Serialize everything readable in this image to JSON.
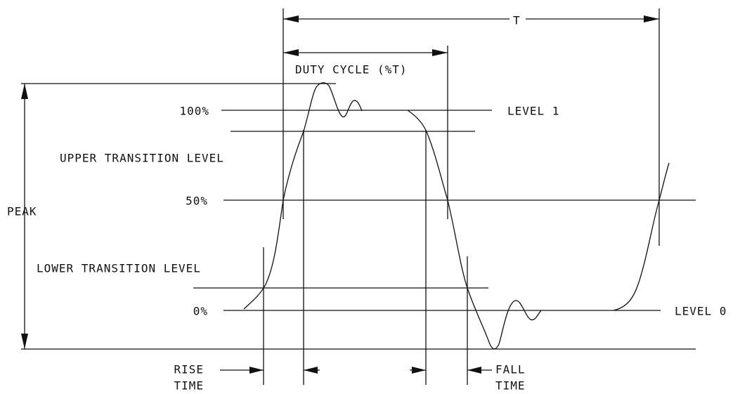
{
  "labels": {
    "period": "T",
    "duty_cycle": "DUTY CYCLE (%T)",
    "level_100": "100%",
    "level_1": "LEVEL 1",
    "upper_transition": "UPPER TRANSITION LEVEL",
    "level_50": "50%",
    "peak": "PEAK",
    "lower_transition": "LOWER TRANSITION LEVEL",
    "level_0_pct": "0%",
    "level_0": "LEVEL 0",
    "rise_time": [
      "RISE",
      "TIME"
    ],
    "fall_time": [
      "FALL",
      "TIME"
    ]
  }
}
